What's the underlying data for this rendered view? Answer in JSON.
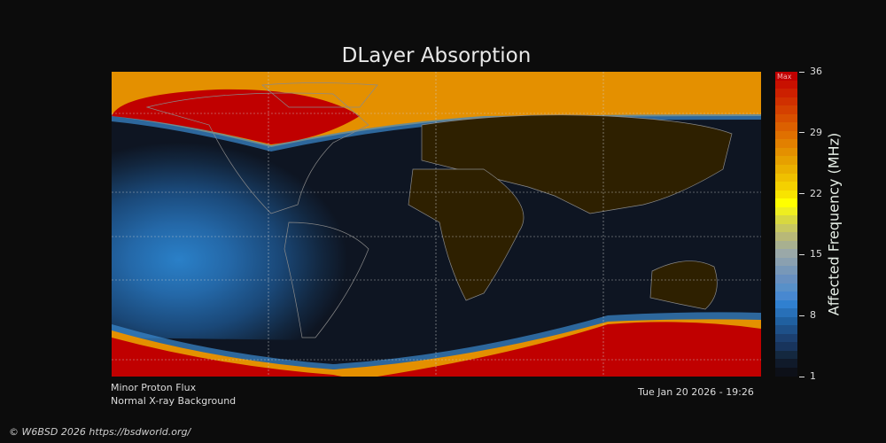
{
  "title": "DLayer Absorption",
  "colorbar": {
    "label": "Affected Frequency (MHz)",
    "max_label": "Max",
    "ticks": [
      "36",
      "29",
      "22",
      "15",
      "8",
      "1"
    ],
    "range": [
      1,
      36
    ],
    "colors": [
      "#c00000",
      "#c81000",
      "#cc2000",
      "#d03000",
      "#d44000",
      "#d85000",
      "#dc6000",
      "#e07000",
      "#e28000",
      "#e49000",
      "#e6a000",
      "#eab000",
      "#efc000",
      "#f4d000",
      "#f8e400",
      "#ffff00",
      "#eeee20",
      "#d8d840",
      "#c8c860",
      "#b8b878",
      "#a8b090",
      "#9aa8a8",
      "#8aa0b0",
      "#7898b8",
      "#6890c0",
      "#5890c8",
      "#4888d0",
      "#3080d0",
      "#2870b8",
      "#2060a0",
      "#1e5088",
      "#1c4070",
      "#18345c",
      "#14283f",
      "#101a2a"
    ]
  },
  "map": {
    "colors": {
      "polar_cap": "#c00000",
      "auroral_band": "#e49000",
      "day_dark": "#0e1522",
      "land": "#2e2000",
      "coast": "#8a8a8a"
    }
  },
  "info": {
    "proton": "Minor Proton Flux",
    "xray": "Normal X-ray Background",
    "timestamp": "Tue Jan 20 2026 - 19:26"
  },
  "copyright": "© W6BSD 2026 https://bsdworld.org/"
}
